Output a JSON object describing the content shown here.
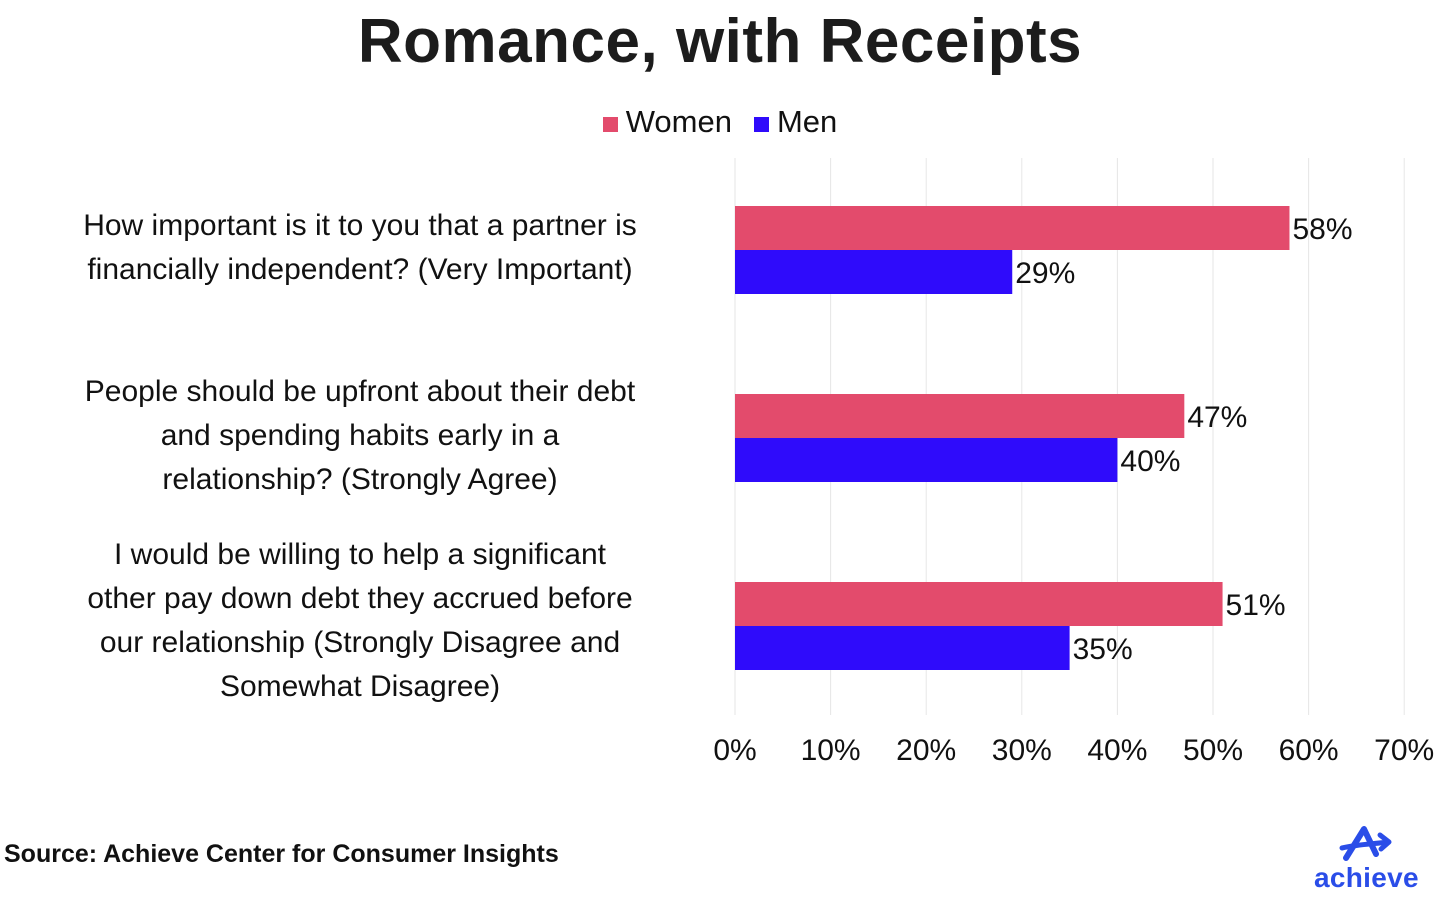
{
  "colors": {
    "women": "#e34b6c",
    "men": "#2f0bfb",
    "grid": "#e6e6e6",
    "brand": "#2a4de8"
  },
  "chart_data": {
    "type": "bar",
    "orientation": "horizontal",
    "title": "Romance, with Receipts",
    "categories": [
      "How important is it to you that a partner is financially independent? (Very Important)",
      "People should be upfront about their debt and spending habits early in a relationship? (Strongly Agree)",
      "I would be willing to help a significant other pay down debt they accrued before our relationship (Strongly Disagree and Somewhat Disagree)"
    ],
    "category_lines": [
      [
        "How important is it to you that a partner is",
        "financially independent? (Very Important)"
      ],
      [
        "People should be upfront about their debt",
        "and spending habits early in a",
        "relationship? (Strongly Agree)"
      ],
      [
        "I would be willing to help a significant",
        "other pay down debt they accrued before",
        "our relationship (Strongly Disagree and",
        "Somewhat Disagree)"
      ]
    ],
    "series": [
      {
        "name": "Women",
        "values": [
          58,
          47,
          51
        ],
        "labels": [
          "58%",
          "47%",
          "51%"
        ]
      },
      {
        "name": "Men",
        "values": [
          29,
          40,
          35
        ],
        "labels": [
          "29%",
          "40%",
          "35%"
        ]
      }
    ],
    "xlim": [
      0,
      70
    ],
    "xticks": [
      0,
      10,
      20,
      30,
      40,
      50,
      60,
      70
    ],
    "xtick_labels": [
      "0%",
      "10%",
      "20%",
      "30%",
      "40%",
      "50%",
      "60%",
      "70%"
    ],
    "grid": true,
    "legend": "top-center"
  },
  "footer": {
    "source": "Source: Achieve Center for Consumer Insights",
    "logo_text": "achieve"
  }
}
